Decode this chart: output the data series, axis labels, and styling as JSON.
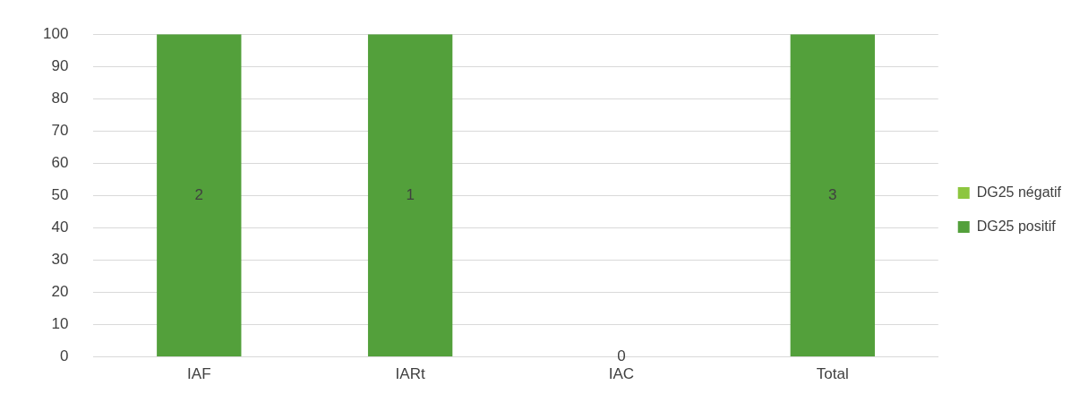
{
  "chart_data": {
    "type": "bar",
    "stacked": true,
    "categories": [
      "IAF",
      "IARt",
      "IAC",
      "Total"
    ],
    "series": [
      {
        "name": "DG25 négatif",
        "color": "#8dc63f",
        "values": [
          0,
          0,
          0,
          0
        ]
      },
      {
        "name": "DG25 positif",
        "color": "#53a03b",
        "values": [
          100,
          100,
          0,
          100
        ]
      }
    ],
    "annotations": [
      "2",
      "1",
      "0",
      "3"
    ],
    "ylim": [
      0,
      100
    ],
    "yticks": [
      0,
      10,
      20,
      30,
      40,
      50,
      60,
      70,
      80,
      90,
      100
    ],
    "grid": "y",
    "legend": "right"
  }
}
